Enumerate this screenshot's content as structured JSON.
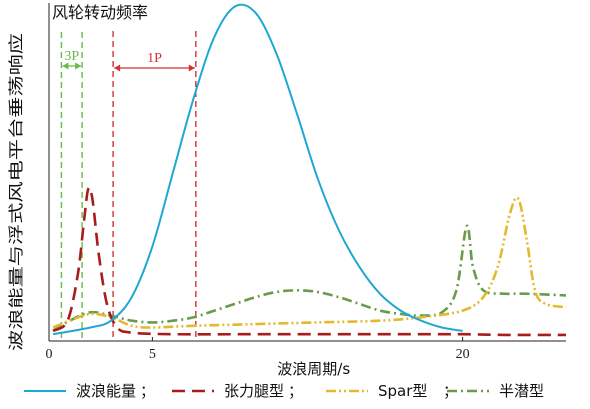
{
  "chart_data": {
    "type": "line",
    "title": "风轮转动频率",
    "xlabel": "波浪周期/s",
    "ylabel": "波浪能量与浮式风电平台垂荡响应",
    "xlim": [
      0,
      25
    ],
    "ylim": [
      0,
      1
    ],
    "xticks": [
      0,
      5,
      20
    ],
    "grid": false,
    "legend_position": "bottom",
    "legend_separator": "；",
    "bands": [
      {
        "label": "3P",
        "x0": 0.6,
        "x1": 1.6,
        "color": "#66bb44"
      },
      {
        "label": "1P",
        "x0": 3.1,
        "x1": 7.1,
        "color": "#d63030"
      }
    ],
    "series": [
      {
        "name": "波浪能量",
        "color": "#1ea8d2",
        "dash": "solid",
        "points": [
          [
            0.2,
            0.02
          ],
          [
            2,
            0.04
          ],
          [
            3,
            0.06
          ],
          [
            4,
            0.13
          ],
          [
            5,
            0.28
          ],
          [
            6,
            0.5
          ],
          [
            7,
            0.72
          ],
          [
            8,
            0.9
          ],
          [
            9,
            0.99
          ],
          [
            10,
            0.97
          ],
          [
            11,
            0.85
          ],
          [
            12,
            0.67
          ],
          [
            13,
            0.48
          ],
          [
            14,
            0.33
          ],
          [
            15,
            0.22
          ],
          [
            16,
            0.14
          ],
          [
            17,
            0.09
          ],
          [
            18,
            0.06
          ],
          [
            19,
            0.04
          ],
          [
            20,
            0.03
          ]
        ]
      },
      {
        "name": "张力腿型",
        "color": "#a81c1c",
        "dash": "long-dash",
        "points": [
          [
            0.2,
            0.03
          ],
          [
            0.9,
            0.06
          ],
          [
            1.4,
            0.2
          ],
          [
            1.7,
            0.36
          ],
          [
            1.9,
            0.45
          ],
          [
            2.1,
            0.42
          ],
          [
            2.4,
            0.26
          ],
          [
            2.8,
            0.11
          ],
          [
            3.3,
            0.04
          ],
          [
            4,
            0.025
          ],
          [
            6,
            0.02
          ],
          [
            10,
            0.02
          ],
          [
            15,
            0.02
          ],
          [
            20,
            0.02
          ],
          [
            22,
            0.018
          ],
          [
            25,
            0.018
          ]
        ]
      },
      {
        "name": "Spar型",
        "color": "#e3b92f",
        "dash": "dash-dot-dot",
        "points": [
          [
            0.2,
            0.04
          ],
          [
            1,
            0.06
          ],
          [
            2,
            0.08
          ],
          [
            3,
            0.07
          ],
          [
            4,
            0.045
          ],
          [
            5,
            0.04
          ],
          [
            7,
            0.045
          ],
          [
            10,
            0.05
          ],
          [
            13,
            0.055
          ],
          [
            16,
            0.06
          ],
          [
            18,
            0.07
          ],
          [
            20,
            0.09
          ],
          [
            21,
            0.13
          ],
          [
            21.7,
            0.22
          ],
          [
            22.3,
            0.38
          ],
          [
            22.7,
            0.42
          ],
          [
            23.1,
            0.3
          ],
          [
            23.5,
            0.15
          ],
          [
            24,
            0.11
          ],
          [
            25,
            0.1
          ]
        ]
      },
      {
        "name": "半潜型",
        "color": "#6a9a4c",
        "dash": "dash-dot",
        "points": [
          [
            0.2,
            0.03
          ],
          [
            1,
            0.06
          ],
          [
            2,
            0.085
          ],
          [
            3,
            0.075
          ],
          [
            4,
            0.06
          ],
          [
            5,
            0.055
          ],
          [
            6,
            0.06
          ],
          [
            7,
            0.07
          ],
          [
            8,
            0.09
          ],
          [
            9,
            0.11
          ],
          [
            10,
            0.13
          ],
          [
            11,
            0.145
          ],
          [
            12,
            0.15
          ],
          [
            13,
            0.145
          ],
          [
            14,
            0.13
          ],
          [
            15,
            0.11
          ],
          [
            16,
            0.09
          ],
          [
            17,
            0.08
          ],
          [
            18,
            0.075
          ],
          [
            19,
            0.085
          ],
          [
            19.7,
            0.15
          ],
          [
            20.2,
            0.34
          ],
          [
            20.5,
            0.22
          ],
          [
            21,
            0.15
          ],
          [
            22,
            0.14
          ],
          [
            23,
            0.14
          ],
          [
            25,
            0.135
          ]
        ]
      }
    ]
  }
}
